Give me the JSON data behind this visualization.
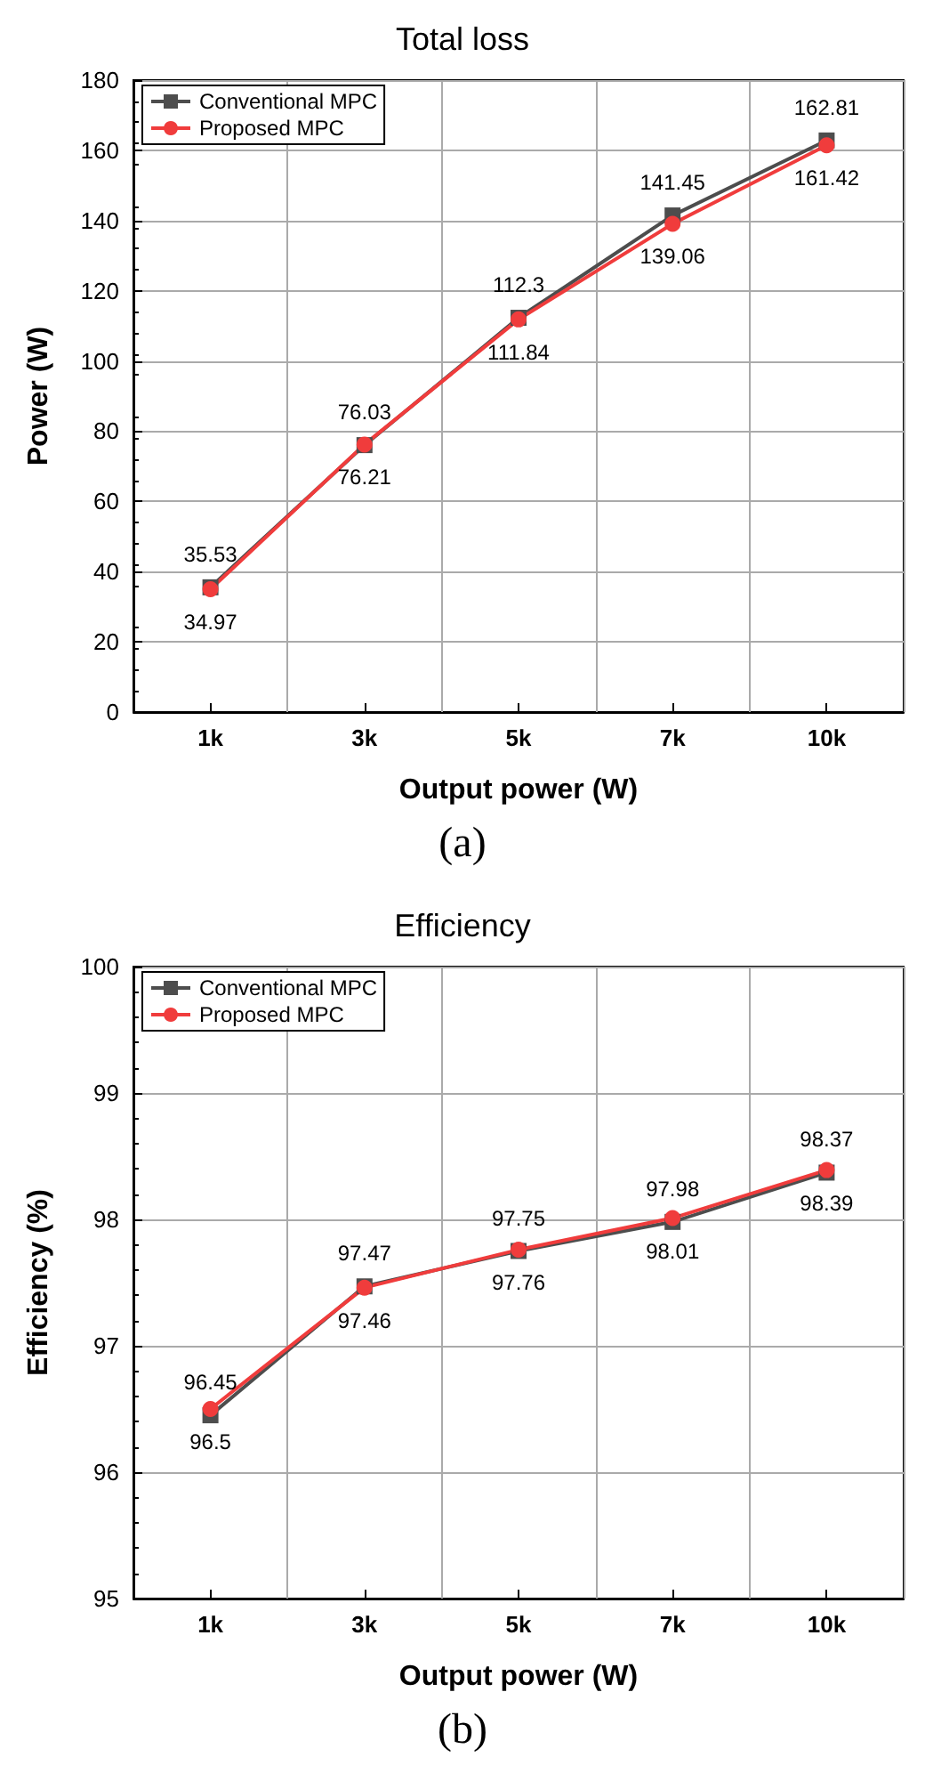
{
  "chart_data": [
    {
      "type": "line",
      "title": "Total loss",
      "xlabel": "Output power (W)",
      "ylabel": "Power (W)",
      "categories": [
        "1k",
        "3k",
        "5k",
        "7k",
        "10k"
      ],
      "series": [
        {
          "name": "Conventional MPC",
          "color": "#4d4d4d",
          "marker": "square",
          "values": [
            35.53,
            76.03,
            112.3,
            141.45,
            162.81
          ]
        },
        {
          "name": "Proposed MPC",
          "color": "#f03c3c",
          "marker": "circle",
          "values": [
            34.97,
            76.21,
            111.84,
            139.06,
            161.42
          ]
        }
      ],
      "ylim": [
        0,
        180
      ],
      "yticks": [
        0,
        20,
        40,
        60,
        80,
        100,
        120,
        140,
        160,
        180
      ],
      "grid": true,
      "legend": "top left",
      "data_labels": true,
      "annotations": [
        "(a)"
      ]
    },
    {
      "type": "line",
      "title": "Efficiency",
      "xlabel": "Output power (W)",
      "ylabel": "Efficiency (%)",
      "categories": [
        "1k",
        "3k",
        "5k",
        "7k",
        "10k"
      ],
      "series": [
        {
          "name": "Conventional MPC",
          "color": "#4d4d4d",
          "marker": "square",
          "values": [
            96.45,
            97.47,
            97.75,
            97.98,
            98.37
          ]
        },
        {
          "name": "Proposed MPC",
          "color": "#f03c3c",
          "marker": "circle",
          "values": [
            96.5,
            97.46,
            97.76,
            98.01,
            98.39
          ]
        }
      ],
      "ylim": [
        95,
        100
      ],
      "yticks": [
        95,
        96,
        97,
        98,
        99,
        100
      ],
      "grid": true,
      "legend": "top left",
      "data_labels": true,
      "annotations": [
        "(b)"
      ]
    }
  ]
}
